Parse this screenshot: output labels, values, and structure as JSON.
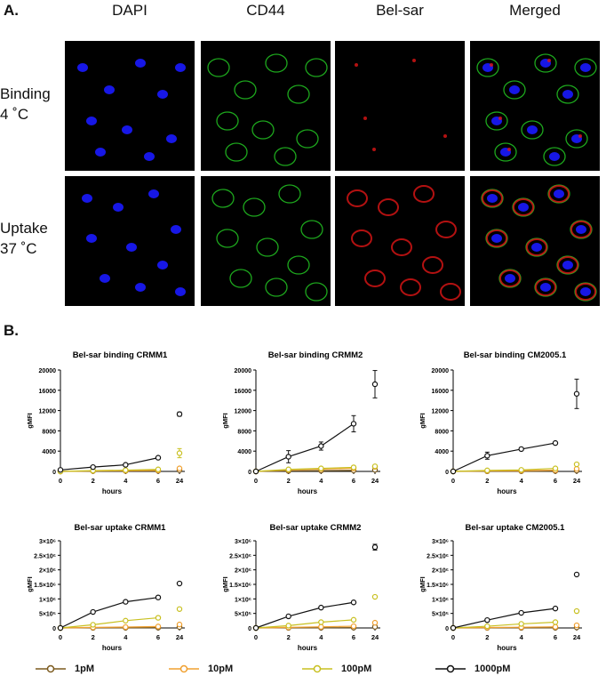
{
  "panel_a": {
    "letter": "A.",
    "columns": [
      "DAPI",
      "CD44",
      "Bel-sar",
      "Merged"
    ],
    "rows": [
      {
        "line1": "Binding",
        "line2": "4 ˚C"
      },
      {
        "line1": "Uptake",
        "line2": "37 ˚C"
      }
    ],
    "colors": {
      "dapi": "#1a1aff",
      "cd44": "#22c422",
      "belsar": "#e01515"
    }
  },
  "panel_b": {
    "letter": "B.",
    "legend": [
      {
        "label": "1pM",
        "color": "#7b5a1e"
      },
      {
        "label": "10pM",
        "color": "#f0a030"
      },
      {
        "label": "100pM",
        "color": "#c8c020"
      },
      {
        "label": "1000pM",
        "color": "#111111"
      }
    ]
  },
  "chart_data": [
    {
      "type": "line",
      "title": "Bel-sar binding CRMM1",
      "xlabel": "hours",
      "ylabel": "gMFI",
      "x_ticks": [
        "0",
        "2",
        "4",
        "6",
        "24"
      ],
      "y_ticks": [
        "0",
        "4000",
        "8000",
        "12000",
        "16000",
        "20000"
      ],
      "ylim": [
        0,
        20000
      ],
      "series": [
        {
          "name": "1pM",
          "x": [
            0,
            2,
            4,
            6,
            24
          ],
          "values": [
            0,
            60,
            90,
            120,
            250
          ]
        },
        {
          "name": "10pM",
          "x": [
            0,
            2,
            4,
            6,
            24
          ],
          "values": [
            0,
            90,
            140,
            200,
            600
          ]
        },
        {
          "name": "100pM",
          "x": [
            0,
            2,
            4,
            6,
            24
          ],
          "values": [
            0,
            150,
            250,
            400,
            3600
          ],
          "err": [
            0,
            0,
            0,
            0,
            900
          ]
        },
        {
          "name": "1000pM",
          "x": [
            0,
            2,
            4,
            6,
            24
          ],
          "values": [
            300,
            850,
            1300,
            2700,
            11300
          ],
          "err": [
            0,
            100,
            150,
            200,
            400
          ]
        }
      ]
    },
    {
      "type": "line",
      "title": "Bel-sar binding CRMM2",
      "xlabel": "hours",
      "ylabel": "gMFI",
      "x_ticks": [
        "0",
        "2",
        "4",
        "6",
        "24"
      ],
      "y_ticks": [
        "0",
        "4000",
        "8000",
        "12000",
        "16000",
        "20000"
      ],
      "ylim": [
        0,
        20000
      ],
      "series": [
        {
          "name": "1pM",
          "x": [
            0,
            2,
            4,
            6,
            24
          ],
          "values": [
            0,
            100,
            150,
            200,
            300
          ]
        },
        {
          "name": "10pM",
          "x": [
            0,
            2,
            4,
            6,
            24
          ],
          "values": [
            0,
            300,
            450,
            600,
            900
          ]
        },
        {
          "name": "100pM",
          "x": [
            0,
            2,
            4,
            6,
            24
          ],
          "values": [
            0,
            400,
            600,
            800,
            1000
          ]
        },
        {
          "name": "1000pM",
          "x": [
            0,
            2,
            4,
            6,
            24
          ],
          "values": [
            0,
            2900,
            5000,
            9400,
            17200
          ],
          "err": [
            0,
            1200,
            800,
            1600,
            2700
          ]
        }
      ]
    },
    {
      "type": "line",
      "title": "Bel-sar binding CM2005.1",
      "xlabel": "hours",
      "ylabel": "gMFI",
      "x_ticks": [
        "0",
        "2",
        "4",
        "6",
        "24"
      ],
      "y_ticks": [
        "0",
        "4000",
        "8000",
        "12000",
        "16000",
        "20000"
      ],
      "ylim": [
        0,
        20000
      ],
      "series": [
        {
          "name": "1pM",
          "x": [
            0,
            2,
            4,
            6,
            24
          ],
          "values": [
            0,
            30,
            50,
            80,
            150
          ]
        },
        {
          "name": "10pM",
          "x": [
            0,
            2,
            4,
            6,
            24
          ],
          "values": [
            0,
            100,
            150,
            250,
            500
          ]
        },
        {
          "name": "100pM",
          "x": [
            0,
            2,
            4,
            6,
            24
          ],
          "values": [
            0,
            200,
            300,
            600,
            1400
          ]
        },
        {
          "name": "1000pM",
          "x": [
            0,
            2,
            4,
            6,
            24
          ],
          "values": [
            0,
            3100,
            4400,
            5600,
            15300
          ],
          "err": [
            0,
            700,
            300,
            200,
            2900
          ]
        }
      ]
    },
    {
      "type": "line",
      "title": "Bel-sar uptake CRMM1",
      "xlabel": "hours",
      "ylabel": "gMFI",
      "x_ticks": [
        "0",
        "2",
        "4",
        "6",
        "24"
      ],
      "y_ticks": [
        "0",
        "5×10⁵",
        "1×10⁶",
        "1.5×10⁶",
        "2×10⁶",
        "2.5×10⁶",
        "3×10⁶"
      ],
      "ylim": [
        0,
        3000000
      ],
      "series": [
        {
          "name": "1pM",
          "x": [
            0,
            2,
            4,
            6,
            24
          ],
          "values": [
            0,
            5000,
            8000,
            12000,
            30000
          ]
        },
        {
          "name": "10pM",
          "x": [
            0,
            2,
            4,
            6,
            24
          ],
          "values": [
            0,
            20000,
            30000,
            50000,
            120000
          ]
        },
        {
          "name": "100pM",
          "x": [
            0,
            2,
            4,
            6,
            24
          ],
          "values": [
            0,
            110000,
            250000,
            350000,
            650000
          ]
        },
        {
          "name": "1000pM",
          "x": [
            0,
            2,
            4,
            6,
            24
          ],
          "values": [
            0,
            550000,
            900000,
            1050000,
            1530000
          ]
        }
      ]
    },
    {
      "type": "line",
      "title": "Bel-sar  uptake CRMM2",
      "xlabel": "hours",
      "ylabel": "gMFI",
      "x_ticks": [
        "0",
        "2",
        "4",
        "6",
        "24"
      ],
      "y_ticks": [
        "0",
        "5×10⁵",
        "1×10⁶",
        "1.5×10⁶",
        "2×10⁶",
        "2.5×10⁶",
        "3×10⁶"
      ],
      "ylim": [
        0,
        3000000
      ],
      "series": [
        {
          "name": "1pM",
          "x": [
            0,
            2,
            4,
            6,
            24
          ],
          "values": [
            0,
            5000,
            8000,
            12000,
            40000
          ]
        },
        {
          "name": "10pM",
          "x": [
            0,
            2,
            4,
            6,
            24
          ],
          "values": [
            0,
            20000,
            40000,
            60000,
            180000
          ]
        },
        {
          "name": "100pM",
          "x": [
            0,
            2,
            4,
            6,
            24
          ],
          "values": [
            0,
            80000,
            200000,
            280000,
            1070000
          ]
        },
        {
          "name": "1000pM",
          "x": [
            0,
            2,
            4,
            6,
            24
          ],
          "values": [
            0,
            400000,
            700000,
            880000,
            2780000
          ],
          "err": [
            0,
            0,
            0,
            0,
            100000
          ]
        }
      ]
    },
    {
      "type": "line",
      "title": "Bel-sar uptake CM2005.1",
      "xlabel": "hours",
      "ylabel": "gMFI",
      "x_ticks": [
        "0",
        "2",
        "4",
        "6",
        "24"
      ],
      "y_ticks": [
        "0",
        "5×10⁵",
        "1×10⁶",
        "1.5×10⁶",
        "2×10⁶",
        "2.5×10⁶",
        "3×10⁶"
      ],
      "ylim": [
        0,
        3000000
      ],
      "series": [
        {
          "name": "1pM",
          "x": [
            0,
            2,
            4,
            6,
            24
          ],
          "values": [
            0,
            3000,
            5000,
            8000,
            20000
          ]
        },
        {
          "name": "10pM",
          "x": [
            0,
            2,
            4,
            6,
            24
          ],
          "values": [
            0,
            15000,
            25000,
            40000,
            90000
          ]
        },
        {
          "name": "100pM",
          "x": [
            0,
            2,
            4,
            6,
            24
          ],
          "values": [
            0,
            60000,
            140000,
            200000,
            580000
          ]
        },
        {
          "name": "1000pM",
          "x": [
            0,
            2,
            4,
            6,
            24
          ],
          "values": [
            0,
            270000,
            520000,
            670000,
            1840000
          ]
        }
      ]
    }
  ]
}
